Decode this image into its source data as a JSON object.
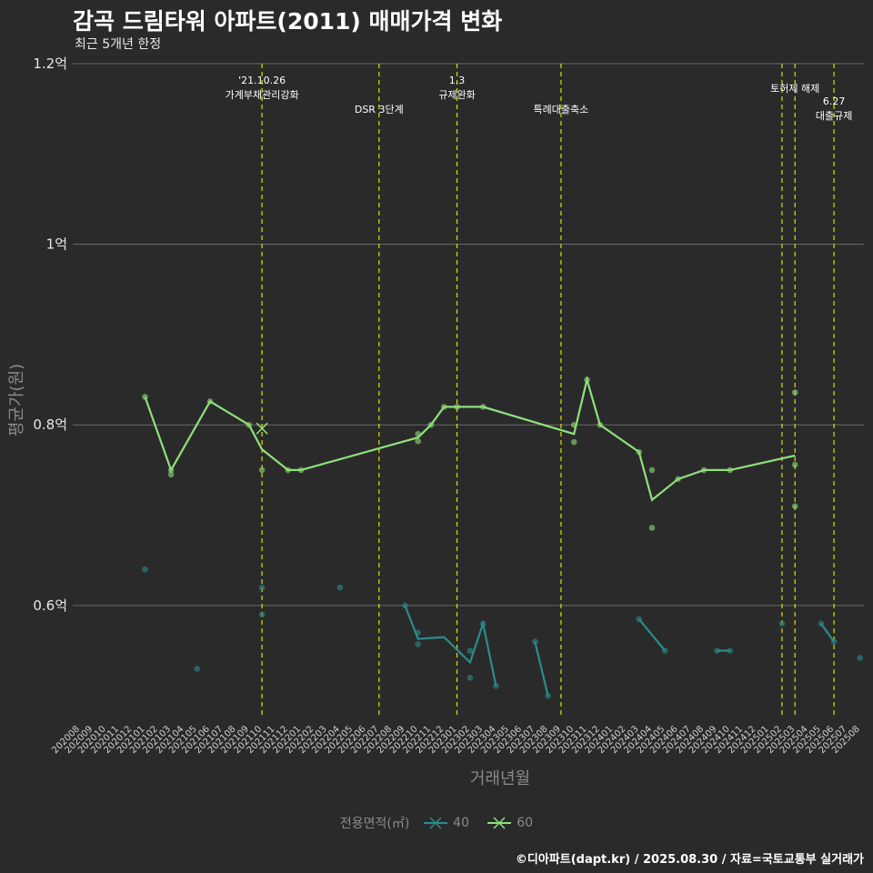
{
  "title": "감곡 드림타워 아파트(2011) 매매가격 변화",
  "subtitle": "최근 5개년 한정",
  "caption": "©디아파트(dapt.kr) / 2025.08.30 / 자료=국토교통부 실거래가",
  "legend": {
    "title": "전용면적(㎡)",
    "items": [
      {
        "label": "40",
        "color": "#2a8c8a"
      },
      {
        "label": "60",
        "color": "#8ee07a"
      }
    ]
  },
  "chart_data": {
    "type": "line",
    "title": "감곡 드림타워 아파트(2011) 매매가격 변화",
    "xlabel": "거래년월",
    "ylabel": "평균가(원)",
    "ylim": [
      0.475,
      1.2
    ],
    "y_unit": "억",
    "y_ticks": [
      {
        "value": 0.6,
        "label": "0.6억"
      },
      {
        "value": 0.8,
        "label": "0.8억"
      },
      {
        "value": 1.0,
        "label": "1억"
      },
      {
        "value": 1.2,
        "label": "1.2억"
      }
    ],
    "categories": [
      "202008",
      "202009",
      "202010",
      "202011",
      "202012",
      "202101",
      "202102",
      "202103",
      "202104",
      "202105",
      "202106",
      "202107",
      "202108",
      "202109",
      "202110",
      "202111",
      "202112",
      "202201",
      "202202",
      "202203",
      "202204",
      "202205",
      "202206",
      "202207",
      "202208",
      "202209",
      "202210",
      "202211",
      "202212",
      "202301",
      "202302",
      "202303",
      "202304",
      "202305",
      "202306",
      "202307",
      "202308",
      "202309",
      "202310",
      "202311",
      "202312",
      "202401",
      "202402",
      "202403",
      "202404",
      "202405",
      "202406",
      "202407",
      "202408",
      "202409",
      "202410",
      "202411",
      "202412",
      "202501",
      "202502",
      "202503",
      "202504",
      "202505",
      "202506",
      "202507",
      "202508"
    ],
    "events": [
      {
        "month": "202110",
        "label": "'21.10.26\n가계부채관리강화",
        "row": 0
      },
      {
        "month": "202207",
        "label": "DSR 3단계",
        "row": 1
      },
      {
        "month": "202301",
        "label": "1.3\n규제완화",
        "row": 0
      },
      {
        "month": "202309",
        "label": "특례대출축소",
        "row": 1
      },
      {
        "month": "202502",
        "label": "",
        "row": 0
      },
      {
        "month": "202503",
        "label": "토허제 해제",
        "row": 0
      },
      {
        "month": "202506",
        "label": "6.27\n대출규제",
        "row": 2
      }
    ],
    "series": [
      {
        "name": "40",
        "color": "#2a8c8a",
        "line": [
          {
            "x": "202209",
            "y": 0.6
          },
          {
            "x": "202210",
            "y": 0.563
          },
          {
            "x": "202212",
            "y": 0.565
          },
          {
            "x": "202302",
            "y": 0.537
          },
          {
            "x": "202303",
            "y": 0.58
          },
          {
            "x": "202304",
            "y": 0.511
          },
          {
            "x": "202307",
            "y": 0.56
          },
          {
            "x": "202308",
            "y": 0.5
          },
          {
            "x": "202403",
            "y": 0.585
          },
          {
            "x": "202405",
            "y": 0.55
          },
          {
            "x": "202409",
            "y": 0.55
          },
          {
            "x": "202410",
            "y": 0.55
          },
          {
            "x": "202505",
            "y": 0.58
          },
          {
            "x": "202506",
            "y": 0.56
          }
        ],
        "segments": [
          [
            0,
            5
          ],
          [
            6,
            7
          ],
          [
            8,
            9
          ],
          [
            10,
            11
          ],
          [
            12,
            13
          ]
        ],
        "points": [
          {
            "x": "202101",
            "y": 0.64
          },
          {
            "x": "202105",
            "y": 0.53
          },
          {
            "x": "202110",
            "y": 0.62
          },
          {
            "x": "202110",
            "y": 0.59
          },
          {
            "x": "202204",
            "y": 0.62
          },
          {
            "x": "202209",
            "y": 0.6
          },
          {
            "x": "202210",
            "y": 0.57
          },
          {
            "x": "202210",
            "y": 0.557
          },
          {
            "x": "202302",
            "y": 0.55
          },
          {
            "x": "202302",
            "y": 0.52
          },
          {
            "x": "202303",
            "y": 0.58
          },
          {
            "x": "202304",
            "y": 0.511
          },
          {
            "x": "202307",
            "y": 0.56
          },
          {
            "x": "202308",
            "y": 0.5
          },
          {
            "x": "202403",
            "y": 0.585
          },
          {
            "x": "202405",
            "y": 0.55
          },
          {
            "x": "202409",
            "y": 0.55
          },
          {
            "x": "202410",
            "y": 0.55
          },
          {
            "x": "202502",
            "y": 0.58
          },
          {
            "x": "202505",
            "y": 0.58
          },
          {
            "x": "202506",
            "y": 0.56
          },
          {
            "x": "202508",
            "y": 0.542
          }
        ]
      },
      {
        "name": "60",
        "color": "#8ee07a",
        "line": [
          {
            "x": "202101",
            "y": 0.831
          },
          {
            "x": "202103",
            "y": 0.75
          },
          {
            "x": "202106",
            "y": 0.826
          },
          {
            "x": "202109",
            "y": 0.8
          },
          {
            "x": "202110",
            "y": 0.773
          },
          {
            "x": "202112",
            "y": 0.75
          },
          {
            "x": "202201",
            "y": 0.75
          },
          {
            "x": "202210",
            "y": 0.786
          },
          {
            "x": "202211",
            "y": 0.8
          },
          {
            "x": "202212",
            "y": 0.82
          },
          {
            "x": "202301",
            "y": 0.82
          },
          {
            "x": "202303",
            "y": 0.82
          },
          {
            "x": "202310",
            "y": 0.79
          },
          {
            "x": "202311",
            "y": 0.85
          },
          {
            "x": "202312",
            "y": 0.8
          },
          {
            "x": "202403",
            "y": 0.77
          },
          {
            "x": "202404",
            "y": 0.717
          },
          {
            "x": "202406",
            "y": 0.74
          },
          {
            "x": "202408",
            "y": 0.75
          },
          {
            "x": "202410",
            "y": 0.75
          },
          {
            "x": "202503",
            "y": 0.766
          }
        ],
        "segments": [
          [
            0,
            20
          ]
        ],
        "points": [
          {
            "x": "202101",
            "y": 0.831
          },
          {
            "x": "202103",
            "y": 0.745
          },
          {
            "x": "202103",
            "y": 0.75
          },
          {
            "x": "202106",
            "y": 0.826
          },
          {
            "x": "202109",
            "y": 0.8
          },
          {
            "x": "202110",
            "y": 0.75
          },
          {
            "x": "202112",
            "y": 0.75
          },
          {
            "x": "202201",
            "y": 0.75
          },
          {
            "x": "202210",
            "y": 0.79
          },
          {
            "x": "202210",
            "y": 0.782
          },
          {
            "x": "202211",
            "y": 0.8
          },
          {
            "x": "202212",
            "y": 0.82
          },
          {
            "x": "202301",
            "y": 0.82
          },
          {
            "x": "202303",
            "y": 0.82
          },
          {
            "x": "202310",
            "y": 0.8
          },
          {
            "x": "202310",
            "y": 0.781
          },
          {
            "x": "202311",
            "y": 0.85
          },
          {
            "x": "202312",
            "y": 0.8
          },
          {
            "x": "202403",
            "y": 0.77
          },
          {
            "x": "202404",
            "y": 0.75
          },
          {
            "x": "202404",
            "y": 0.686
          },
          {
            "x": "202406",
            "y": 0.74
          },
          {
            "x": "202408",
            "y": 0.75
          },
          {
            "x": "202410",
            "y": 0.75
          },
          {
            "x": "202503",
            "y": 0.836
          },
          {
            "x": "202503",
            "y": 0.756
          },
          {
            "x": "202503",
            "y": 0.71
          }
        ],
        "markers": [
          {
            "x": "202110",
            "y": 0.796
          }
        ]
      }
    ]
  }
}
